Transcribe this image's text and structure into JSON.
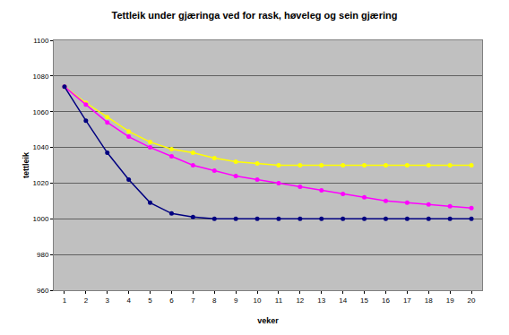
{
  "chart_data": {
    "type": "line",
    "title": "Tettleik under gjæringa ved for rask, høveleg og sein gjæring",
    "x_label": "veker",
    "y_label": "tettleik",
    "x": [
      1,
      2,
      3,
      4,
      5,
      6,
      7,
      8,
      9,
      10,
      11,
      12,
      13,
      14,
      15,
      16,
      17,
      18,
      19,
      20
    ],
    "series": [
      {
        "color": "#ffff00",
        "marker": "circle",
        "values": [
          1074,
          1065,
          1057,
          1049,
          1043,
          1039,
          1037,
          1034,
          1032,
          1031,
          1030,
          1030,
          1030,
          1030,
          1030,
          1030,
          1030,
          1030,
          1030,
          1030
        ]
      },
      {
        "color": "#ff00ff",
        "marker": "circle",
        "values": [
          1074,
          1064,
          1054,
          1046,
          1040,
          1035,
          1030,
          1027,
          1024,
          1022,
          1020,
          1018,
          1016,
          1014,
          1012,
          1010,
          1009,
          1008,
          1007,
          1006
        ]
      },
      {
        "color": "#000080",
        "marker": "circle",
        "values": [
          1074,
          1055,
          1037,
          1022,
          1009,
          1003,
          1001,
          1000,
          1000,
          1000,
          1000,
          1000,
          1000,
          1000,
          1000,
          1000,
          1000,
          1000,
          1000,
          1000
        ]
      }
    ],
    "xlim": [
      0.5,
      20.5
    ],
    "xticks": [
      1,
      2,
      3,
      4,
      5,
      6,
      7,
      8,
      9,
      10,
      11,
      12,
      13,
      14,
      15,
      16,
      17,
      18,
      19,
      20
    ],
    "ylim": [
      960,
      1100
    ],
    "yticks": [
      960,
      980,
      1000,
      1020,
      1040,
      1060,
      1080,
      1100
    ],
    "grid": true
  }
}
